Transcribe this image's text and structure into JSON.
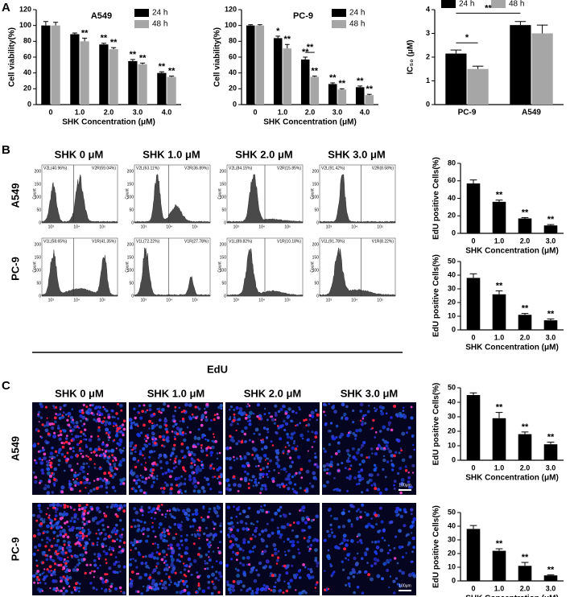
{
  "panel_labels": [
    "A",
    "B",
    "C"
  ],
  "chart_data": [
    {
      "type": "bar",
      "title": "A549",
      "categories": [
        "0",
        "1.0",
        "2.0",
        "3.0",
        "4.0"
      ],
      "series": [
        {
          "name": "24 h",
          "color": "#000000",
          "values": [
            100,
            89,
            76,
            55,
            40
          ],
          "errors": [
            5,
            1.5,
            1.5,
            2,
            1.5
          ],
          "significance": [
            null,
            null,
            "**",
            "**",
            "**"
          ]
        },
        {
          "name": "48 h",
          "color": "#a6a6a6",
          "values": [
            100,
            80,
            70,
            51,
            35
          ],
          "errors": [
            4,
            4,
            2,
            1.5,
            1
          ],
          "significance": [
            null,
            "**",
            "**",
            "**",
            "**"
          ]
        }
      ],
      "xlabel": "SHK Concentration (μM)",
      "ylabel": "Cell viability(%)",
      "ylim": [
        0,
        120
      ],
      "yticks": [
        0,
        20,
        40,
        60,
        80,
        100,
        120
      ],
      "legend": "top-right"
    },
    {
      "type": "bar",
      "title": "PC-9",
      "categories": [
        "0",
        "1.0",
        "2.0",
        "3.0",
        "4.0"
      ],
      "series": [
        {
          "name": "24 h",
          "color": "#000000",
          "values": [
            100,
            84,
            57,
            26,
            22
          ],
          "errors": [
            1,
            2.5,
            3,
            1.5,
            1.5
          ],
          "significance": [
            null,
            "*",
            "**",
            "**",
            "**"
          ]
        },
        {
          "name": "48 h",
          "color": "#a6a6a6",
          "values": [
            100,
            71,
            35,
            19,
            12
          ],
          "errors": [
            1,
            5,
            1,
            1,
            1
          ],
          "significance": [
            null,
            "**",
            "**",
            "**",
            "**"
          ]
        }
      ],
      "brackets": [
        "**"
      ],
      "xlabel": "SHK Concentration (μM)",
      "ylabel": "Cell viability(%)",
      "ylim": [
        0,
        120
      ],
      "yticks": [
        0,
        20,
        40,
        60,
        80,
        100,
        120
      ],
      "legend": "top-right"
    },
    {
      "type": "bar",
      "categories": [
        "PC-9",
        "A549"
      ],
      "series": [
        {
          "name": "24 h",
          "color": "#000000",
          "values": [
            2.15,
            3.35
          ],
          "errors": [
            0.15,
            0.15
          ]
        },
        {
          "name": "48 h",
          "color": "#a6a6a6",
          "values": [
            1.5,
            3.0
          ],
          "errors": [
            0.12,
            0.35
          ]
        }
      ],
      "brackets": [
        "*",
        "**"
      ],
      "ylabel": "IC₅₀ (μM)",
      "ylim": [
        0,
        4
      ],
      "yticks": [
        0,
        1,
        2,
        3,
        4
      ],
      "legend": "top"
    },
    {
      "type": "bar",
      "categories": [
        "0",
        "1.0",
        "2.0",
        "3.0"
      ],
      "values": [
        57,
        36,
        17,
        9
      ],
      "errors": [
        4,
        2,
        1,
        1
      ],
      "significance": [
        null,
        "**",
        "**",
        "**"
      ],
      "color": "#000000",
      "xlabel": "SHK Concentration (μM)",
      "ylabel": "EdU positive Cells(%)",
      "ylim": [
        0,
        80
      ],
      "yticks": [
        0,
        20,
        40,
        60,
        80
      ]
    },
    {
      "type": "bar",
      "categories": [
        "0",
        "1.0",
        "2.0",
        "3.0"
      ],
      "values": [
        38,
        26,
        11,
        7
      ],
      "errors": [
        3,
        2.5,
        1,
        1
      ],
      "significance": [
        null,
        "**",
        "**",
        "**"
      ],
      "color": "#000000",
      "xlabel": "SHK Concentration (μM)",
      "ylabel": "EdU positive Cells(%)",
      "ylim": [
        0,
        50
      ],
      "yticks": [
        0,
        10,
        20,
        30,
        40,
        50
      ]
    },
    {
      "type": "bar",
      "categories": [
        "0",
        "1.0",
        "2.0",
        "3.0"
      ],
      "values": [
        45,
        29,
        18,
        11
      ],
      "errors": [
        1.5,
        4,
        1.5,
        1.5
      ],
      "significance": [
        null,
        "**",
        "**",
        "**"
      ],
      "color": "#000000",
      "xlabel": "SHK Concentration (μM)",
      "ylabel": "EdU positive Cells(%)",
      "ylim": [
        0,
        50
      ],
      "yticks": [
        0,
        10,
        20,
        30,
        40,
        50
      ]
    },
    {
      "type": "bar",
      "categories": [
        "0",
        "1.0",
        "2.0",
        "3.0"
      ],
      "values": [
        38,
        22,
        11,
        4
      ],
      "errors": [
        2.5,
        1.5,
        2.5,
        0.5
      ],
      "significance": [
        null,
        "**",
        "**",
        "**"
      ],
      "color": "#000000",
      "xlabel": "SHK Concentration (μM)",
      "ylabel": "EdU positive Cells(%)",
      "ylim": [
        0,
        50
      ],
      "yticks": [
        0,
        10,
        20,
        30,
        40,
        50
      ]
    }
  ],
  "flow": {
    "columns": [
      "SHK 0 μM",
      "SHK 1.0 μM",
      "SHK 2.0 μM",
      "SHK 3.0 μM"
    ],
    "rows": [
      "A549",
      "PC-9"
    ],
    "gates": [
      [
        [
          "V2L(40.96%)",
          "V2R(59.04%)"
        ],
        [
          "V2L(63.11%)",
          "V2R(36.89%)"
        ],
        [
          "V2L(84.15%)",
          "V2R(15.85%)"
        ],
        [
          "V2L(91.42%)",
          "V2R(8.58%)"
        ]
      ],
      [
        [
          "V1L(58.65%)",
          "V1R(41.35%)"
        ],
        [
          "V1L(72.22%)",
          "V1R(27.78%)"
        ],
        [
          "V1L(89.82%)",
          "V1R(10.18%)"
        ],
        [
          "V1L(91.78%)",
          "V1R(8.22%)"
        ]
      ]
    ],
    "ylabel": "Count",
    "yticks": [
      0,
      50,
      100,
      150,
      200
    ],
    "xticks": [
      "10³",
      "10⁴",
      "10⁵"
    ],
    "xlabel": "EdU"
  },
  "images": {
    "columns": [
      "SHK 0 μM",
      "SHK 1.0 μM",
      "SHK 2.0 μM",
      "SHK 3.0 μM"
    ],
    "rows": [
      "A549",
      "PC-9"
    ],
    "scale_bar": "100μm"
  }
}
